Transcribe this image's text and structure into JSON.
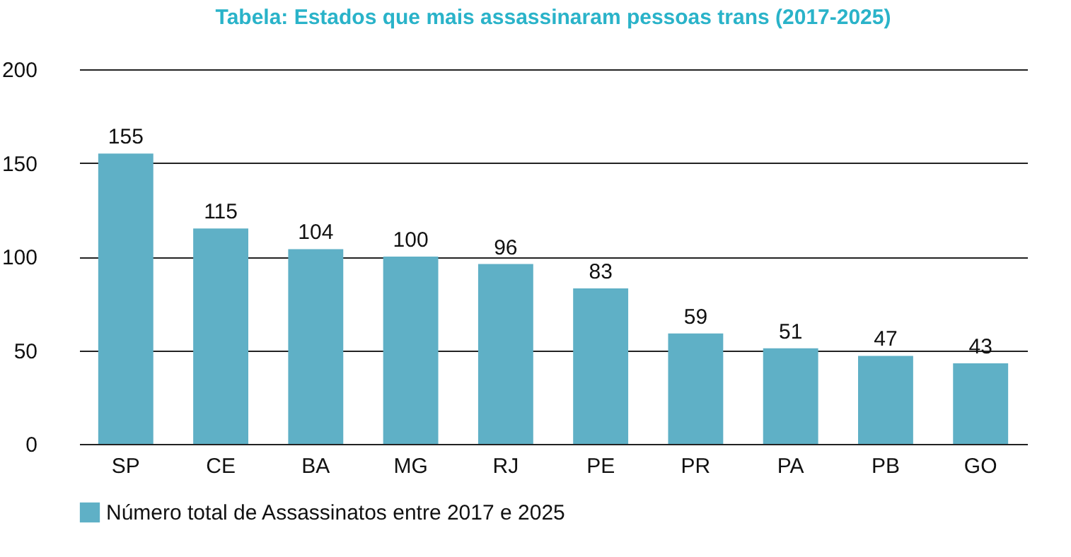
{
  "chart_data": {
    "type": "bar",
    "title": "Tabela: Estados que mais assassinaram pessoas trans (2017-2025)",
    "categories": [
      "SP",
      "CE",
      "BA",
      "MG",
      "RJ",
      "PE",
      "PR",
      "PA",
      "PB",
      "GO"
    ],
    "series": [
      {
        "name": "Número total de Assassinatos entre 2017 e 2025",
        "color": "#5fb0c6",
        "values": [
          155,
          115,
          104,
          100,
          96,
          83,
          59,
          51,
          47,
          43
        ]
      }
    ],
    "ylim": [
      0,
      200
    ],
    "yticks": [
      0,
      50,
      100,
      150,
      200
    ],
    "grid": "y",
    "legend": "bottom",
    "data_labels": true
  }
}
